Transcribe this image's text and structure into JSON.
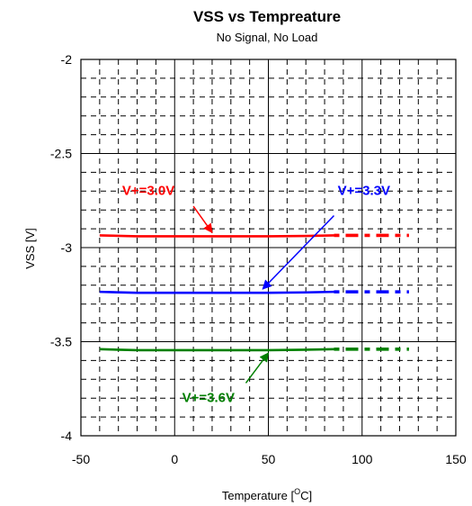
{
  "chart_data": {
    "type": "line",
    "title": "VSS vs Tempreature",
    "subtitle": "No Signal, No Load",
    "xlabel": "Temperature",
    "xlabel_unit_main": "O",
    "xlabel_unit_sup_base": "C",
    "ylabel": "VSS [V]",
    "xlim": [
      -50,
      150
    ],
    "ylim": [
      -4,
      -2
    ],
    "x_ticks": [
      -50,
      0,
      50,
      100,
      150
    ],
    "x_tick_labels": [
      "-50",
      "0",
      "50",
      "100",
      "150"
    ],
    "y_ticks": [
      -2,
      -2.5,
      -3,
      -3.5,
      -4
    ],
    "y_tick_labels": [
      "-2",
      "-2.5",
      "-3",
      "-3.5",
      "-4"
    ],
    "grid": "major solid, minor dashed",
    "series": [
      {
        "name": "V+=3.0V",
        "color": "#ff0000",
        "x": [
          -40,
          -20,
          0,
          25,
          50,
          70,
          85
        ],
        "y": [
          -2.935,
          -2.94,
          -2.94,
          -2.94,
          -2.94,
          -2.938,
          -2.935
        ],
        "extension_x": [
          85,
          125
        ],
        "extension_y": -2.935
      },
      {
        "name": "V+=3.3V",
        "color": "#0000ff",
        "x": [
          -40,
          -20,
          0,
          25,
          50,
          70,
          85
        ],
        "y": [
          -3.235,
          -3.24,
          -3.24,
          -3.24,
          -3.24,
          -3.238,
          -3.235
        ],
        "extension_x": [
          85,
          125
        ],
        "extension_y": -3.235
      },
      {
        "name": "V+=3.6V",
        "color": "#008000",
        "x": [
          -40,
          -20,
          0,
          25,
          50,
          70,
          85
        ],
        "y": [
          -3.54,
          -3.545,
          -3.545,
          -3.545,
          -3.545,
          -3.543,
          -3.54
        ],
        "extension_x": [
          85,
          125
        ],
        "extension_y": -3.54
      }
    ],
    "annotations": [
      {
        "text": "V+=3.0V",
        "color": "#ff0000",
        "label_at": [
          -14,
          -2.72
        ],
        "arrow_from": [
          10,
          -2.78
        ],
        "arrow_to": [
          20,
          -2.92
        ]
      },
      {
        "text": "V+=3.3V",
        "color": "#0000ff",
        "label_at": [
          101,
          -2.72
        ],
        "arrow_from": [
          85,
          -2.83
        ],
        "arrow_to": [
          47,
          -3.22
        ]
      },
      {
        "text": "V+=3.6V",
        "color": "#008000",
        "label_at": [
          18,
          -3.82
        ],
        "arrow_from": [
          38,
          -3.72
        ],
        "arrow_to": [
          50,
          -3.56
        ]
      }
    ]
  }
}
